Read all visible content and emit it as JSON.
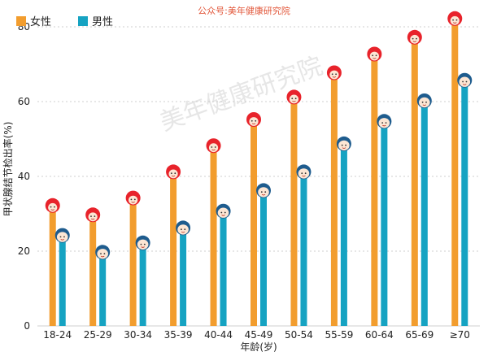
{
  "source_note": "公众号:美年健康研究院",
  "watermark": "美年健康研究院",
  "colors": {
    "female": "#F29D2E",
    "male": "#16A3C2",
    "source_text": "#E2573A",
    "grid": "#cfcfcf",
    "female_hair": "#E8232B",
    "male_hair": "#1E5C8E",
    "face": "#FCE6D4"
  },
  "icons": {
    "female": "female-face-icon",
    "male": "male-face-icon"
  },
  "chart_data": {
    "type": "bar",
    "title": "",
    "xlabel": "年龄(岁)",
    "ylabel": "甲状腺结节检出率(%)",
    "ylim": [
      0,
      85
    ],
    "yticks": [
      0,
      20,
      40,
      60,
      80
    ],
    "grid": true,
    "legend_position": "top-left",
    "categories": [
      "18-24",
      "25-29",
      "30-34",
      "35-39",
      "40-44",
      "45-49",
      "50-54",
      "55-59",
      "60-64",
      "65-69",
      "≥70"
    ],
    "series": [
      {
        "name": "女性",
        "values": [
          32.0,
          29.5,
          34.0,
          41.0,
          48.0,
          55.0,
          61.0,
          67.5,
          72.5,
          77.0,
          82.0
        ]
      },
      {
        "name": "男性",
        "values": [
          24.0,
          19.5,
          22.0,
          26.0,
          30.5,
          36.0,
          41.0,
          48.5,
          54.5,
          60.0,
          65.5
        ]
      }
    ]
  }
}
